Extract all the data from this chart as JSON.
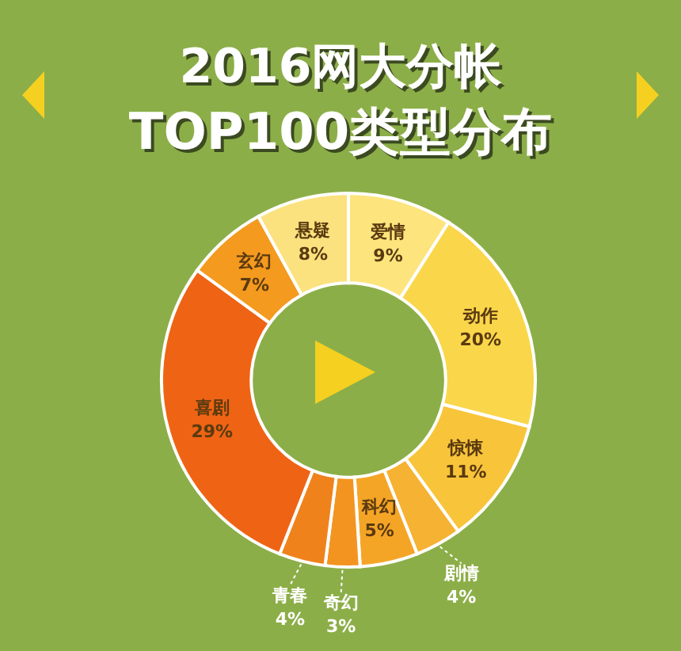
{
  "chart_data": {
    "type": "donut",
    "title": "2016网大分帐",
    "subtitle": "TOP100类型分布",
    "categories": [
      "爱情",
      "动作",
      "惊悚",
      "剧情",
      "科幻",
      "奇幻",
      "青春",
      "喜剧",
      "玄幻",
      "悬疑"
    ],
    "values": [
      9,
      20,
      11,
      4,
      5,
      3,
      4,
      29,
      7,
      8
    ],
    "value_labels": [
      "9%",
      "20%",
      "11%",
      "4%",
      "5%",
      "3%",
      "4%",
      "29%",
      "7%",
      "8%"
    ],
    "colors": [
      "#fde47c",
      "#fad64a",
      "#f8c43a",
      "#f6b232",
      "#f5a526",
      "#f39420",
      "#f0821c",
      "#ee6414",
      "#f49a1e",
      "#fbe27e"
    ]
  }
}
